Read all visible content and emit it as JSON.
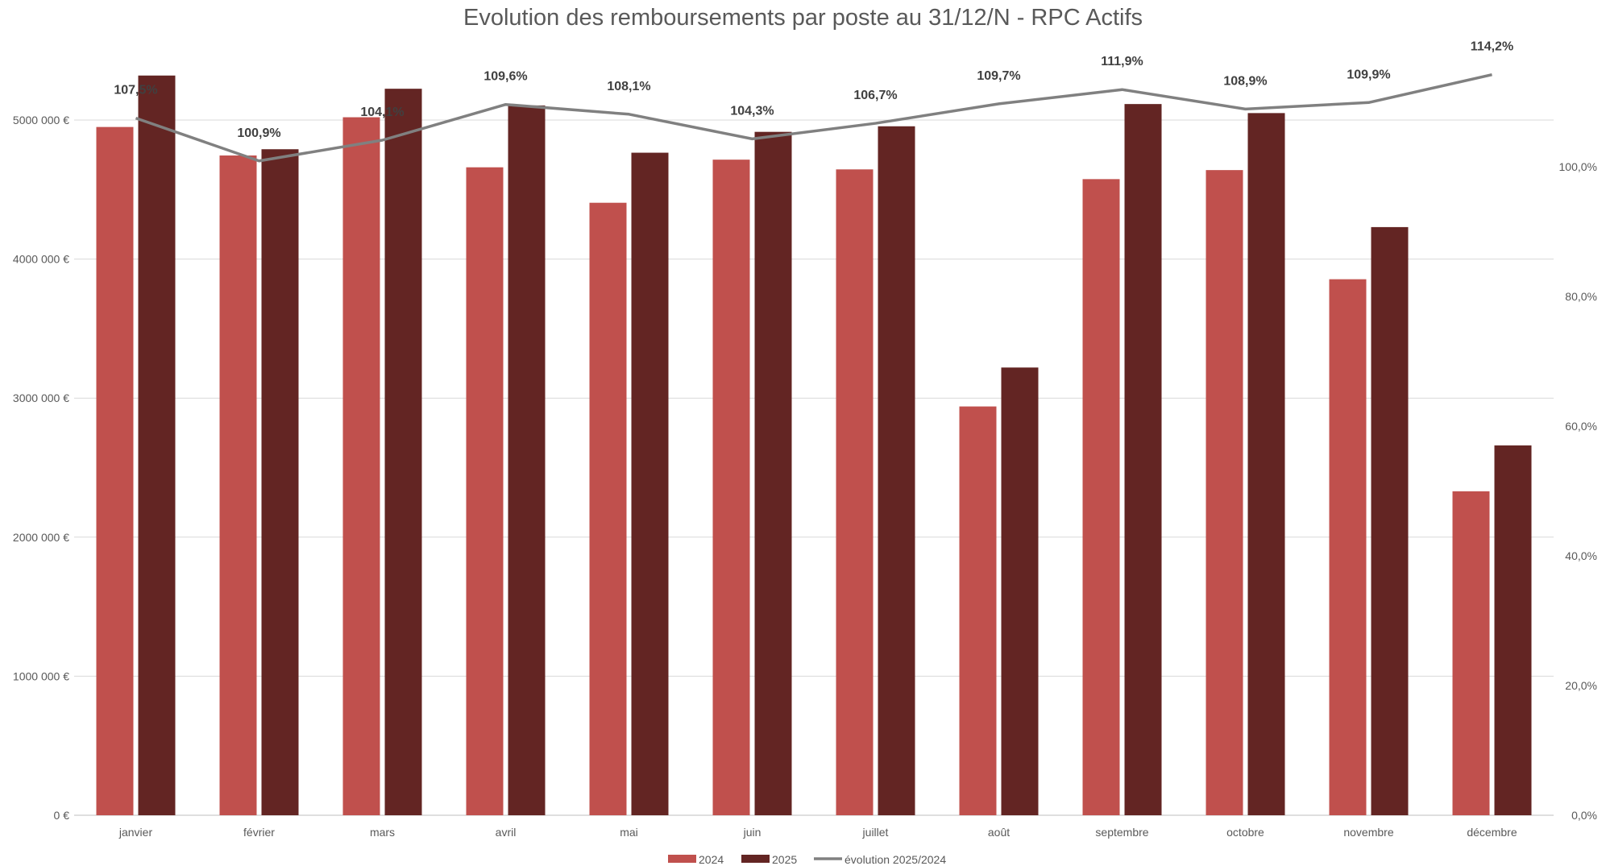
{
  "chart_data": {
    "type": "bar",
    "title": "Evolution des remboursements par poste au 31/12/N - RPC Actifs",
    "categories": [
      "janvier",
      "février",
      "mars",
      "avril",
      "mai",
      "juin",
      "juillet",
      "août",
      "septembre",
      "octobre",
      "novembre",
      "décembre"
    ],
    "series": [
      {
        "name": "2024",
        "type": "bar",
        "axis": "left",
        "color": "#C0504D",
        "values": [
          4950000,
          4745000,
          5020000,
          4660000,
          4405000,
          4715000,
          4645000,
          2940000,
          4575000,
          4640000,
          3855000,
          2330000
        ]
      },
      {
        "name": "2025",
        "type": "bar",
        "axis": "left",
        "color": "#632523",
        "values": [
          5320000,
          4790000,
          5225000,
          5105000,
          4765000,
          4915000,
          4955000,
          3220000,
          5115000,
          5050000,
          4230000,
          2660000
        ]
      },
      {
        "name": "évolution 2025/2024",
        "type": "line",
        "axis": "right",
        "color": "#808080",
        "values": [
          107.5,
          100.9,
          104.1,
          109.6,
          108.1,
          104.3,
          106.7,
          109.7,
          111.9,
          108.9,
          109.9,
          114.2
        ],
        "labels": [
          "107,5%",
          "100,9%",
          "104,1%",
          "109,6%",
          "108,1%",
          "104,3%",
          "106,7%",
          "109,7%",
          "111,9%",
          "108,9%",
          "109,9%",
          "114,2%"
        ]
      }
    ],
    "yleft": {
      "lim": [
        0,
        5000000
      ],
      "ticks": [
        0,
        1000000,
        2000000,
        3000000,
        4000000,
        5000000
      ],
      "tick_labels": [
        "0 €",
        "1000 000 €",
        "2000 000 €",
        "3000 000 €",
        "4000 000 €",
        "5000 000 €"
      ]
    },
    "yright": {
      "lim": [
        0,
        100
      ],
      "ticks": [
        0,
        20,
        40,
        60,
        80,
        100
      ],
      "tick_labels": [
        "0,0%",
        "20,0%",
        "40,0%",
        "60,0%",
        "80,0%",
        "100,0%"
      ]
    },
    "grid": true,
    "legend": "bottom-center"
  }
}
